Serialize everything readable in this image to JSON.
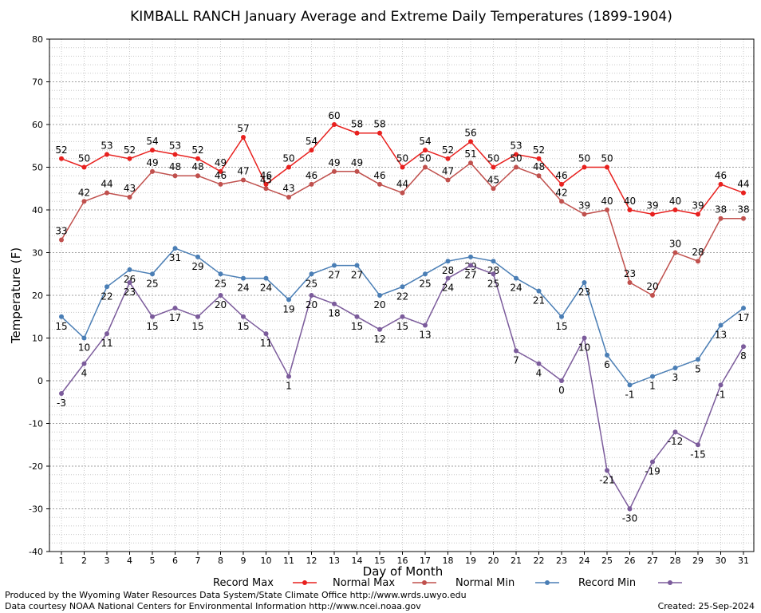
{
  "chart_data": {
    "type": "line",
    "title": "KIMBALL RANCH January Average and Extreme Daily Temperatures (1899-1904)",
    "xlabel": "Day of Month",
    "ylabel": "Temperature (F)",
    "ylim": [
      -40,
      80
    ],
    "yticks": [
      -40,
      -30,
      -20,
      -10,
      0,
      10,
      20,
      30,
      40,
      50,
      60,
      70,
      80
    ],
    "x": [
      1,
      2,
      3,
      4,
      5,
      6,
      7,
      8,
      9,
      10,
      11,
      12,
      13,
      14,
      15,
      16,
      17,
      18,
      19,
      20,
      21,
      22,
      23,
      24,
      25,
      26,
      27,
      28,
      29,
      30,
      31
    ],
    "grid": true,
    "legend_position": "bottom",
    "series": [
      {
        "name": "Record Max",
        "color": "#e8201e",
        "values": [
          52,
          50,
          53,
          52,
          54,
          53,
          52,
          49,
          57,
          46,
          50,
          54,
          60,
          58,
          58,
          50,
          54,
          52,
          56,
          50,
          53,
          52,
          46,
          50,
          50,
          40,
          39,
          40,
          39,
          46,
          44
        ]
      },
      {
        "name": "Normal Max",
        "color": "#c0504d",
        "values": [
          33,
          42,
          44,
          43,
          49,
          48,
          48,
          46,
          47,
          45,
          43,
          46,
          49,
          49,
          46,
          44,
          50,
          47,
          51,
          45,
          50,
          48,
          42,
          39,
          40,
          23,
          20,
          30,
          28,
          38,
          38
        ]
      },
      {
        "name": "Normal Min",
        "color": "#4a7eb5",
        "values": [
          15,
          10,
          22,
          26,
          25,
          31,
          29,
          25,
          24,
          24,
          19,
          25,
          27,
          27,
          20,
          22,
          25,
          28,
          29,
          28,
          24,
          21,
          15,
          23,
          6,
          -1,
          1,
          3,
          5,
          13,
          17
        ]
      },
      {
        "name": "Record Min",
        "color": "#7b5b9b",
        "values": [
          -3,
          4,
          11,
          23,
          15,
          17,
          15,
          20,
          15,
          11,
          1,
          20,
          18,
          15,
          12,
          15,
          13,
          24,
          27,
          25,
          7,
          4,
          0,
          10,
          -21,
          -30,
          -19,
          -12,
          -15,
          -1,
          8
        ]
      }
    ]
  },
  "footer": {
    "produced_by": "Produced by the Wyoming Water Resources Data System/State Climate Office http://www.wrds.uwyo.edu",
    "courtesy": "Data courtesy NOAA National Centers for Environmental Information http://www.ncei.noaa.gov",
    "created": "Created:  25-Sep-2024"
  }
}
